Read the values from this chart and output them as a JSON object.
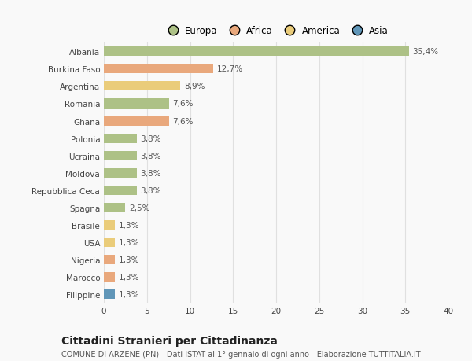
{
  "categories": [
    "Albania",
    "Burkina Faso",
    "Argentina",
    "Romania",
    "Ghana",
    "Polonia",
    "Ucraina",
    "Moldova",
    "Repubblica Ceca",
    "Spagna",
    "Brasile",
    "USA",
    "Nigeria",
    "Marocco",
    "Filippine"
  ],
  "values": [
    35.4,
    12.7,
    8.9,
    7.6,
    7.6,
    3.8,
    3.8,
    3.8,
    3.8,
    2.5,
    1.3,
    1.3,
    1.3,
    1.3,
    1.3
  ],
  "labels": [
    "35,4%",
    "12,7%",
    "8,9%",
    "7,6%",
    "7,6%",
    "3,8%",
    "3,8%",
    "3,8%",
    "3,8%",
    "2,5%",
    "1,3%",
    "1,3%",
    "1,3%",
    "1,3%",
    "1,3%"
  ],
  "continents": [
    "Europa",
    "Africa",
    "America",
    "Europa",
    "Africa",
    "Europa",
    "Europa",
    "Europa",
    "Europa",
    "Europa",
    "America",
    "America",
    "Africa",
    "Africa",
    "Asia"
  ],
  "continent_colors": {
    "Europa": "#adc186",
    "Africa": "#e9a87c",
    "America": "#eacc7a",
    "Asia": "#6096b8"
  },
  "xlim": [
    0,
    40
  ],
  "xticks": [
    0,
    5,
    10,
    15,
    20,
    25,
    30,
    35,
    40
  ],
  "title": "Cittadini Stranieri per Cittadinanza",
  "subtitle": "COMUNE DI ARZENE (PN) - Dati ISTAT al 1° gennaio di ogni anno - Elaborazione TUTTITALIA.IT",
  "background_color": "#f9f9f9",
  "grid_color": "#e0e0e0",
  "label_fontsize": 7.5,
  "tick_fontsize": 7.5,
  "ytick_fontsize": 7.5,
  "title_fontsize": 10,
  "subtitle_fontsize": 7,
  "legend_fontsize": 8.5
}
